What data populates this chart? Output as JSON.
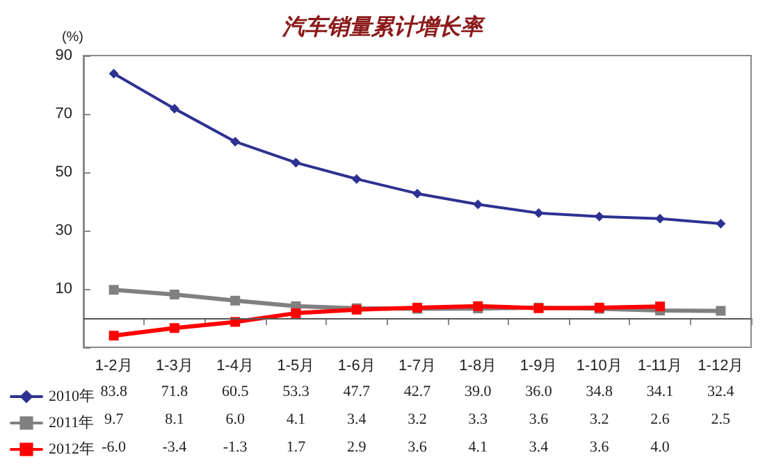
{
  "chart_data": {
    "type": "line",
    "title": "汽车销量累计增长率",
    "ylabel": "(%)",
    "categories": [
      "1-2月",
      "1-3月",
      "1-4月",
      "1-5月",
      "1-6月",
      "1-7月",
      "1-8月",
      "1-9月",
      "1-10月",
      "1-11月",
      "1-12月"
    ],
    "series": [
      {
        "name": "2010年",
        "color": "#2e3192",
        "marker": "diamond",
        "values": [
          83.8,
          71.8,
          60.5,
          53.3,
          47.7,
          42.7,
          39.0,
          36.0,
          34.8,
          34.1,
          32.4
        ],
        "value_labels": [
          "83.8",
          "71.8",
          "60.5",
          "53.3",
          "47.7",
          "42.7",
          "39.0",
          "36.0",
          "34.8",
          "34.1",
          "32.4"
        ]
      },
      {
        "name": "2011年",
        "color": "#808080",
        "marker": "square",
        "values": [
          9.7,
          8.1,
          6.0,
          4.1,
          3.4,
          3.2,
          3.3,
          3.6,
          3.2,
          2.6,
          2.5
        ],
        "value_labels": [
          "9.7",
          "8.1",
          "6.0",
          "4.1",
          "3.4",
          "3.2",
          "3.3",
          "3.6",
          "3.2",
          "2.6",
          "2.5"
        ]
      },
      {
        "name": "2012年",
        "color": "#ff0000",
        "marker": "square",
        "values": [
          -6.0,
          -3.4,
          -1.3,
          1.7,
          2.9,
          3.6,
          4.1,
          3.4,
          3.6,
          4.0,
          null
        ],
        "value_labels": [
          "-6.0",
          "-3.4",
          "-1.3",
          "1.7",
          "2.9",
          "3.6",
          "4.1",
          "3.4",
          "3.6",
          "4.0",
          null
        ]
      }
    ],
    "ylim": [
      -10,
      90
    ],
    "yticks": [
      {
        "value": -10,
        "label": null
      },
      10,
      30,
      50,
      70,
      90
    ],
    "ref_lines": [
      {
        "axis": "y",
        "value": 0,
        "color": "#555555"
      }
    ],
    "grid": false,
    "legend": "bottom left",
    "line_style": "solid"
  }
}
